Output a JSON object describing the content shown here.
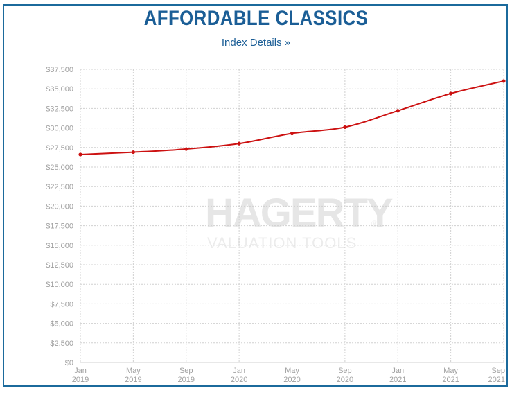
{
  "header": {
    "title": "AFFORDABLE CLASSICS",
    "link_label": "Index Details »"
  },
  "watermark": {
    "brand": "HAGERTY",
    "reg": "®",
    "tagline": "VALUATION TOOLS"
  },
  "colors": {
    "line": "#cc1111",
    "title": "#1b5e96",
    "grid": "#d0d0d0",
    "border": "#1b6a9c"
  },
  "chart_data": {
    "type": "line",
    "title": "AFFORDABLE CLASSICS",
    "xlabel": "",
    "ylabel": "",
    "ylim": [
      0,
      37500
    ],
    "grid": true,
    "y_ticks": [
      "$0",
      "$2,500",
      "$5,000",
      "$7,500",
      "$10,000",
      "$12,500",
      "$15,000",
      "$17,500",
      "$20,000",
      "$22,500",
      "$25,000",
      "$27,500",
      "$30,000",
      "$32,500",
      "$35,000",
      "$37,500"
    ],
    "x_ticks": [
      {
        "month": "Jan",
        "year": "2019"
      },
      {
        "month": "May",
        "year": "2019"
      },
      {
        "month": "Sep",
        "year": "2019"
      },
      {
        "month": "Jan",
        "year": "2020"
      },
      {
        "month": "May",
        "year": "2020"
      },
      {
        "month": "Sep",
        "year": "2020"
      },
      {
        "month": "Jan",
        "year": "2021"
      },
      {
        "month": "May",
        "year": "2021"
      },
      {
        "month": "Sep",
        "year": "2021"
      }
    ],
    "series": [
      {
        "values": [
          26600,
          26900,
          27300,
          28000,
          29300,
          30100,
          32200,
          34400,
          36000
        ]
      }
    ]
  }
}
